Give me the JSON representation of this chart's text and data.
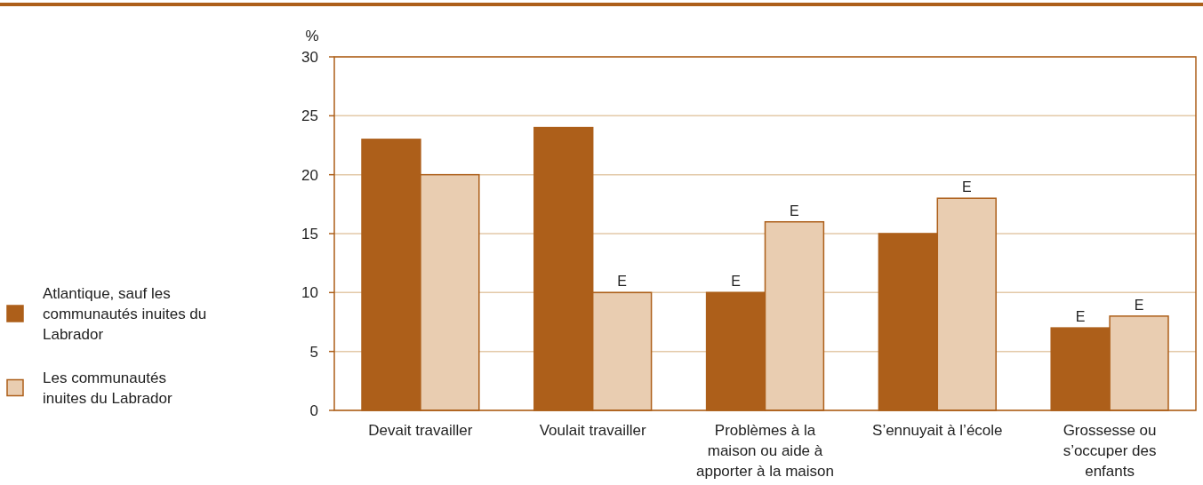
{
  "chart_data": {
    "type": "bar",
    "ylabel": "%",
    "categories": [
      "Devait travailler",
      "Voulait travailler",
      "Problèmes à la maison ou aide à apporter à la maison",
      "S’ennuyait à l’école",
      "Grossesse ou s’occuper des enfants"
    ],
    "series": [
      {
        "name": "Atlantique, sauf les communautés inuites du Labrador",
        "color": "#ad5f1a",
        "values": [
          23,
          24,
          10,
          15,
          7
        ],
        "value_labels": [
          null,
          null,
          "E",
          null,
          "E"
        ]
      },
      {
        "name": "Les communautés inuites du Labrador",
        "color": "#e9cdb1",
        "values": [
          20,
          10,
          16,
          18,
          8
        ],
        "value_labels": [
          null,
          "E",
          "E",
          "E",
          "E"
        ]
      }
    ],
    "ylim": [
      0,
      30
    ],
    "yticks": [
      0,
      5,
      10,
      15,
      20,
      25,
      30
    ],
    "grid": "y",
    "legend": "left"
  }
}
